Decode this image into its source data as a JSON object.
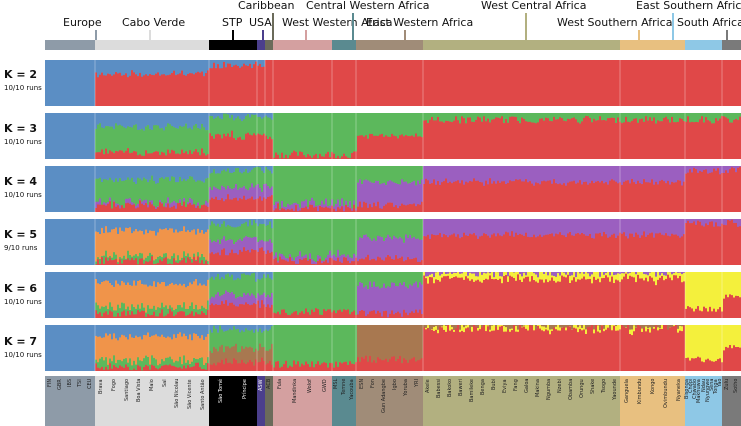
{
  "regions": [
    {
      "name": "Europe",
      "color": "#8e9ba8",
      "label_key": "europe"
    },
    {
      "name": "Cabo Verde",
      "color": "#dcdcdc",
      "label_key": "cabo-verde"
    },
    {
      "name": "STP",
      "color": "#000000",
      "label_key": "stp"
    },
    {
      "name": "USA",
      "color": "#4b3f8c",
      "label_key": "usa"
    },
    {
      "name": "Caribbean",
      "color": "#6b6b5a",
      "label_key": "caribbean"
    },
    {
      "name": "West Western Africa",
      "color": "#d4a0a0",
      "label_key": "west-western-africa"
    },
    {
      "name": "Central Western Africa",
      "color": "#5a8a90",
      "label_key": "central-western-africa"
    },
    {
      "name": "East Western Africa",
      "color": "#a08c78",
      "label_key": "east-western-africa"
    },
    {
      "name": "West Central Africa",
      "color": "#b2b080",
      "label_key": "west-central-africa"
    },
    {
      "name": "West Southern Africa",
      "color": "#e8c080",
      "label_key": "west-southern-africa"
    },
    {
      "name": "East Southern Africa",
      "color": "#8ec8e6",
      "label_key": "east-southern-africa"
    },
    {
      "name": "South Africa",
      "color": "#7a7a7a",
      "label_key": "south-africa"
    }
  ],
  "labels": {
    "europe": "Europe",
    "cabo_verde": "Cabo Verde",
    "stp": "STP",
    "usa": "USA",
    "caribbean": "Caribbean",
    "west_western": "West Western Africa",
    "central_western": "Central Western Africa",
    "east_western": "East Western Africa",
    "west_central": "West Central Africa",
    "west_southern": "West Southern Africa",
    "east_southern": "East Southern Africa",
    "south_africa": "South Africa"
  },
  "panels": [
    {
      "k_label": "K = 2",
      "runs": "10/10 runs"
    },
    {
      "k_label": "K = 3",
      "runs": "10/10 runs"
    },
    {
      "k_label": "K = 4",
      "runs": "10/10 runs"
    },
    {
      "k_label": "K = 5",
      "runs": "9/10 runs"
    },
    {
      "k_label": "K = 6",
      "runs": "10/10 runs"
    },
    {
      "k_label": "K = 7",
      "runs": "10/10 runs"
    }
  ],
  "cluster_colors": {
    "blue": "#5b8ec4",
    "red": "#e04848",
    "green": "#5cb85c",
    "purple": "#9b5fc0",
    "orange": "#f0944a",
    "yellow": "#f4f03c",
    "brown": "#a87850"
  },
  "populations": [
    {
      "name": "FIN",
      "region": 0
    },
    {
      "name": "GBR",
      "region": 0
    },
    {
      "name": "IBS",
      "region": 0
    },
    {
      "name": "TSI",
      "region": 0
    },
    {
      "name": "CEU",
      "region": 0
    },
    {
      "name": "Brava",
      "region": 1
    },
    {
      "name": "Fogo",
      "region": 1
    },
    {
      "name": "Santiago",
      "region": 1
    },
    {
      "name": "Boa Vista",
      "region": 1
    },
    {
      "name": "Maio",
      "region": 1
    },
    {
      "name": "Sal",
      "region": 1
    },
    {
      "name": "São Nicolau",
      "region": 1
    },
    {
      "name": "São Vicente",
      "region": 1
    },
    {
      "name": "Santo Antão",
      "region": 1
    },
    {
      "name": "São Tomé",
      "region": 2
    },
    {
      "name": "Príncipe",
      "region": 2
    },
    {
      "name": "ASW",
      "region": 3
    },
    {
      "name": "ACB",
      "region": 4
    },
    {
      "name": "Fula",
      "region": 5
    },
    {
      "name": "Mandinka",
      "region": 5
    },
    {
      "name": "Wolof",
      "region": 5
    },
    {
      "name": "GWD",
      "region": 5
    },
    {
      "name": "MSL",
      "region": 6
    },
    {
      "name": "Temne",
      "region": 6
    },
    {
      "name": "Yacouba",
      "region": 6
    },
    {
      "name": "ESN",
      "region": 7
    },
    {
      "name": "Fon",
      "region": 7
    },
    {
      "name": "Gun Adangbe",
      "region": 7
    },
    {
      "name": "Igbo",
      "region": 7
    },
    {
      "name": "Yoruba",
      "region": 7
    },
    {
      "name": "YRI",
      "region": 7
    },
    {
      "name": "Akele",
      "region": 8
    },
    {
      "name": "Babessi",
      "region": 8
    },
    {
      "name": "Bakoko",
      "region": 8
    },
    {
      "name": "Baweri",
      "region": 8
    },
    {
      "name": "Bamileke",
      "region": 8
    },
    {
      "name": "Benga",
      "region": 8
    },
    {
      "name": "Bubi",
      "region": 8
    },
    {
      "name": "Eviya",
      "region": 8
    },
    {
      "name": "Fang",
      "region": 8
    },
    {
      "name": "Galoa",
      "region": 8
    },
    {
      "name": "Makina",
      "region": 8
    },
    {
      "name": "Ngumba",
      "region": 8
    },
    {
      "name": "Nzebi",
      "region": 8
    },
    {
      "name": "Obamba",
      "region": 8
    },
    {
      "name": "Orungu",
      "region": 8
    },
    {
      "name": "Shake",
      "region": 8
    },
    {
      "name": "Tsogo",
      "region": 8
    },
    {
      "name": "Yaounde",
      "region": 8
    },
    {
      "name": "Ganguela",
      "region": 9
    },
    {
      "name": "Kimbundu",
      "region": 9
    },
    {
      "name": "Kongo",
      "region": 9
    },
    {
      "name": "Ovimbundu",
      "region": 9
    },
    {
      "name": "Nyaneka",
      "region": 9
    },
    {
      "name": "Bisonga",
      "region": 10
    },
    {
      "name": "Chopi",
      "region": 10
    },
    {
      "name": "Chwabo",
      "region": 10
    },
    {
      "name": "Makhuwa",
      "region": 10
    },
    {
      "name": "Ndau",
      "region": 10
    },
    {
      "name": "Nyungwe",
      "region": 10
    },
    {
      "name": "Sena",
      "region": 10
    },
    {
      "name": "Tonga",
      "region": 10
    },
    {
      "name": "Yao",
      "region": 10
    },
    {
      "name": "Zulu",
      "region": 11
    },
    {
      "name": "Sotho",
      "region": 11
    }
  ]
}
